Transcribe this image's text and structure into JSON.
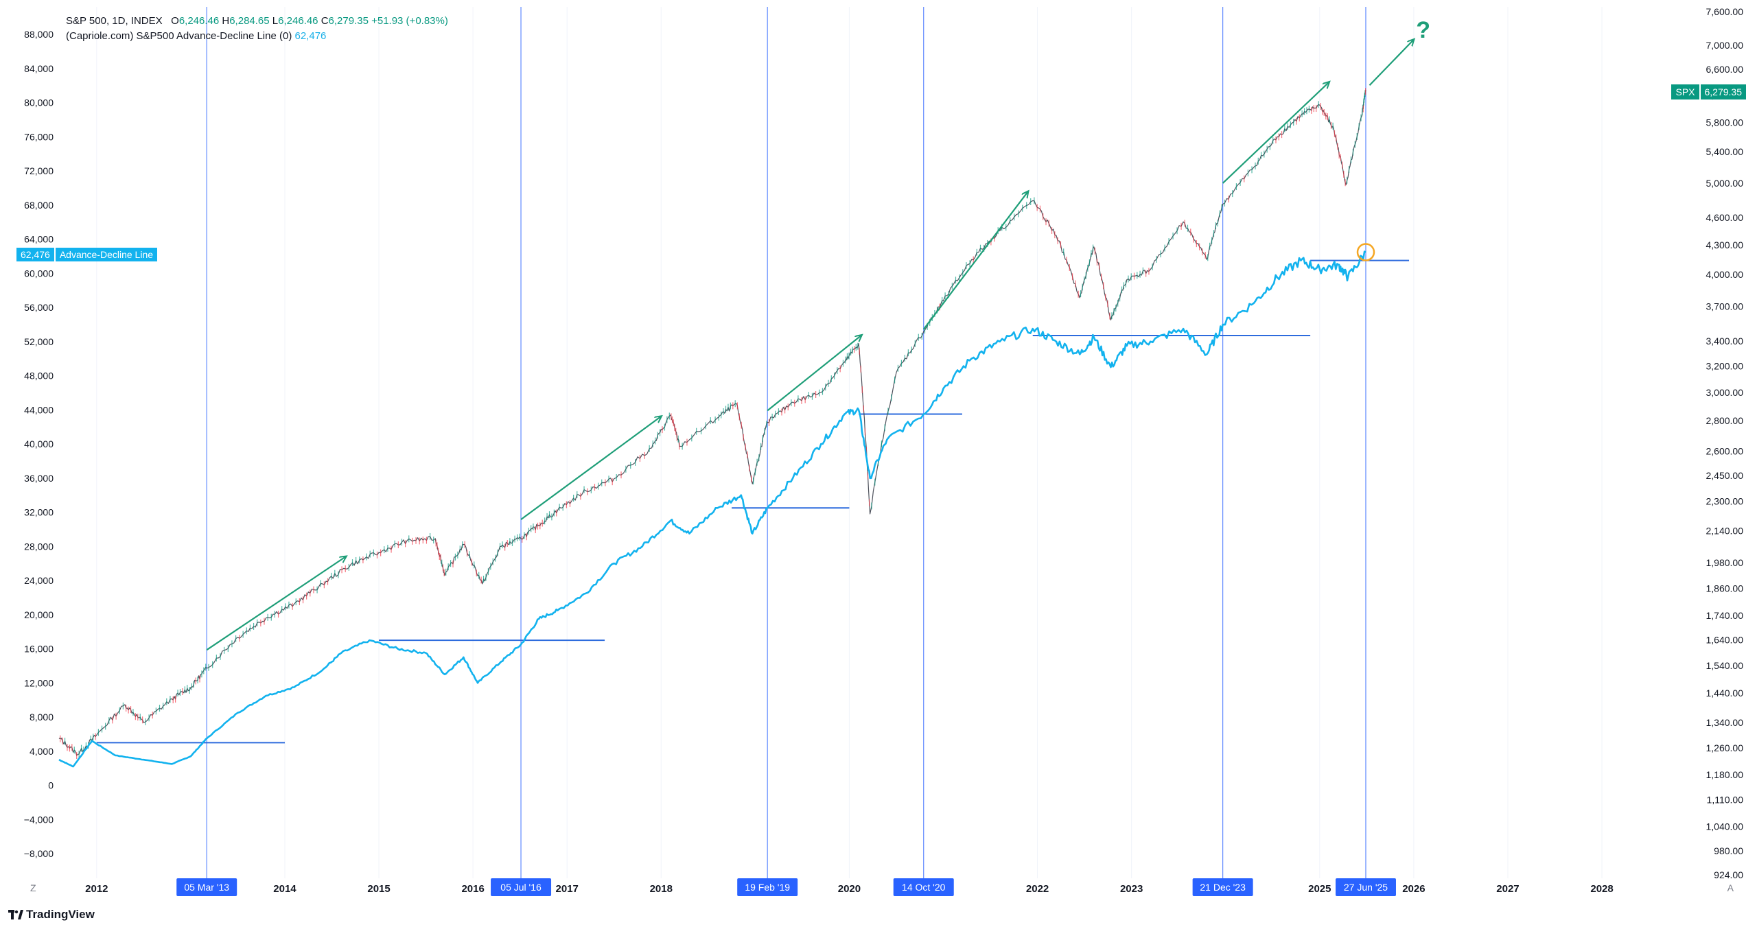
{
  "legend": {
    "line1": {
      "symbol": "S&P 500, 1D, INDEX",
      "o_label": "O",
      "o_value": "6,246.46",
      "h_label": "H",
      "h_value": "6,284.65",
      "l_label": "L",
      "l_value": "6,246.46",
      "c_label": "C",
      "c_value": "6,279.35",
      "change": "+51.93 (+0.83%)"
    },
    "line2": {
      "name": "(Capriole.com) S&P500 Advance-Decline Line (0)",
      "value": "62,476"
    }
  },
  "ad_tag": {
    "value": "62,476",
    "name": "Advance-Decline Line"
  },
  "spx_tag": {
    "symbol": "SPX",
    "value": "6,279.35"
  },
  "brand": "TradingView",
  "buttons": {
    "z": "Z",
    "a": "A"
  },
  "colors": {
    "price_up": "#089981",
    "price_down": "#f23645",
    "adl": "#12b2ee",
    "vline": "#2962ff",
    "arrow": "#1e9e78",
    "support": "#2d6bdd",
    "circle": "#f5a623"
  },
  "chart_data": {
    "type": "line",
    "x_axis": {
      "range": [
        2011.6,
        2028.7
      ],
      "tick_labels": [
        "2012",
        "2014",
        "2015",
        "2016",
        "2017",
        "2018",
        "2020",
        "2022",
        "2023",
        "2025",
        "2026",
        "2027",
        "2028"
      ],
      "tick_positions": [
        2012,
        2014,
        2015,
        2016,
        2017,
        2018,
        2020,
        2022,
        2023,
        2025,
        2026,
        2027,
        2028
      ]
    },
    "left_axis": {
      "name": "Advance-Decline Line",
      "range": [
        -10000,
        92000
      ],
      "tick_labels": [
        "88,000",
        "84,000",
        "80,000",
        "76,000",
        "72,000",
        "68,000",
        "64,000",
        "60,000",
        "56,000",
        "52,000",
        "48,000",
        "44,000",
        "40,000",
        "36,000",
        "32,000",
        "28,000",
        "24,000",
        "20,000",
        "16,000",
        "12,000",
        "8,000",
        "4,000",
        "0",
        "−4,000",
        "−8,000"
      ],
      "tick_values": [
        88000,
        84000,
        80000,
        76000,
        72000,
        68000,
        64000,
        60000,
        56000,
        52000,
        48000,
        44000,
        40000,
        36000,
        32000,
        28000,
        24000,
        20000,
        16000,
        12000,
        8000,
        4000,
        0,
        -4000,
        -8000
      ]
    },
    "right_axis": {
      "name": "SPX",
      "scale": "log",
      "range": [
        924,
        7600
      ],
      "tick_labels": [
        "7,600.00",
        "7,000.00",
        "6,600.00",
        "6,200.00",
        "5,800.00",
        "5,400.00",
        "5,000.00",
        "4,600.00",
        "4,300.00",
        "4,000.00",
        "3,700.00",
        "3,400.00",
        "3,200.00",
        "3,000.00",
        "2,800.00",
        "2,600.00",
        "2,450.00",
        "2,300.00",
        "2,140.00",
        "1,980.00",
        "1,860.00",
        "1,740.00",
        "1,640.00",
        "1,540.00",
        "1,440.00",
        "1,340.00",
        "1,260.00",
        "1,180.00",
        "1,110.00",
        "1,040.00",
        "980.00",
        "924.00"
      ],
      "tick_values": [
        7600,
        7000,
        6600,
        6200,
        5800,
        5400,
        5000,
        4600,
        4300,
        4000,
        3700,
        3400,
        3200,
        3000,
        2800,
        2600,
        2450,
        2300,
        2140,
        1980,
        1860,
        1740,
        1640,
        1540,
        1440,
        1340,
        1260,
        1180,
        1110,
        1040,
        980,
        924
      ]
    },
    "series": [
      {
        "name": "S&P 500",
        "axis": "right",
        "points": [
          [
            2011.6,
            1290
          ],
          [
            2011.8,
            1240
          ],
          [
            2012.0,
            1300
          ],
          [
            2012.3,
            1400
          ],
          [
            2012.5,
            1340
          ],
          [
            2012.8,
            1420
          ],
          [
            2013.0,
            1460
          ],
          [
            2013.17,
            1530
          ],
          [
            2013.5,
            1650
          ],
          [
            2013.8,
            1730
          ],
          [
            2014.1,
            1790
          ],
          [
            2014.4,
            1880
          ],
          [
            2014.7,
            1970
          ],
          [
            2015.0,
            2030
          ],
          [
            2015.3,
            2090
          ],
          [
            2015.6,
            2100
          ],
          [
            2015.7,
            1920
          ],
          [
            2015.9,
            2070
          ],
          [
            2016.1,
            1880
          ],
          [
            2016.3,
            2060
          ],
          [
            2016.51,
            2100
          ],
          [
            2016.7,
            2170
          ],
          [
            2016.9,
            2250
          ],
          [
            2017.2,
            2360
          ],
          [
            2017.5,
            2430
          ],
          [
            2017.9,
            2620
          ],
          [
            2018.1,
            2840
          ],
          [
            2018.2,
            2630
          ],
          [
            2018.6,
            2820
          ],
          [
            2018.8,
            2920
          ],
          [
            2018.97,
            2400
          ],
          [
            2019.13,
            2790
          ],
          [
            2019.4,
            2930
          ],
          [
            2019.7,
            3000
          ],
          [
            2019.95,
            3230
          ],
          [
            2020.1,
            3380
          ],
          [
            2020.22,
            2230
          ],
          [
            2020.5,
            3150
          ],
          [
            2020.79,
            3480
          ],
          [
            2021.0,
            3750
          ],
          [
            2021.3,
            4150
          ],
          [
            2021.6,
            4450
          ],
          [
            2021.95,
            4790
          ],
          [
            2022.2,
            4400
          ],
          [
            2022.45,
            3780
          ],
          [
            2022.6,
            4280
          ],
          [
            2022.78,
            3580
          ],
          [
            2022.95,
            3950
          ],
          [
            2023.2,
            4050
          ],
          [
            2023.55,
            4550
          ],
          [
            2023.8,
            4150
          ],
          [
            2023.97,
            4750
          ],
          [
            2024.3,
            5200
          ],
          [
            2024.55,
            5600
          ],
          [
            2024.8,
            5900
          ],
          [
            2025.0,
            6050
          ],
          [
            2025.15,
            5700
          ],
          [
            2025.28,
            4980
          ],
          [
            2025.45,
            5900
          ],
          [
            2025.49,
            6279
          ]
        ]
      },
      {
        "name": "Advance-Decline Line",
        "axis": "left",
        "points": [
          [
            2011.6,
            3000
          ],
          [
            2011.75,
            2200
          ],
          [
            2011.95,
            5200
          ],
          [
            2012.2,
            3500
          ],
          [
            2012.5,
            3000
          ],
          [
            2012.8,
            2500
          ],
          [
            2013.0,
            3400
          ],
          [
            2013.17,
            5500
          ],
          [
            2013.5,
            8500
          ],
          [
            2013.8,
            10500
          ],
          [
            2014.1,
            11500
          ],
          [
            2014.4,
            13500
          ],
          [
            2014.6,
            15500
          ],
          [
            2014.9,
            17000
          ],
          [
            2015.2,
            16000
          ],
          [
            2015.5,
            15500
          ],
          [
            2015.7,
            13000
          ],
          [
            2015.9,
            15000
          ],
          [
            2016.05,
            12000
          ],
          [
            2016.3,
            14500
          ],
          [
            2016.51,
            16500
          ],
          [
            2016.7,
            19500
          ],
          [
            2016.9,
            20500
          ],
          [
            2017.2,
            22500
          ],
          [
            2017.5,
            26000
          ],
          [
            2017.8,
            28000
          ],
          [
            2018.1,
            31000
          ],
          [
            2018.3,
            29500
          ],
          [
            2018.6,
            32500
          ],
          [
            2018.85,
            34000
          ],
          [
            2018.97,
            29500
          ],
          [
            2019.13,
            32500
          ],
          [
            2019.4,
            36000
          ],
          [
            2019.7,
            40000
          ],
          [
            2019.95,
            43500
          ],
          [
            2020.1,
            44000
          ],
          [
            2020.22,
            36000
          ],
          [
            2020.4,
            40500
          ],
          [
            2020.79,
            43500
          ],
          [
            2021.0,
            46500
          ],
          [
            2021.3,
            50000
          ],
          [
            2021.6,
            52000
          ],
          [
            2021.95,
            53500
          ],
          [
            2022.2,
            52000
          ],
          [
            2022.45,
            50500
          ],
          [
            2022.6,
            52500
          ],
          [
            2022.78,
            49000
          ],
          [
            2022.95,
            51500
          ],
          [
            2023.2,
            52000
          ],
          [
            2023.55,
            53500
          ],
          [
            2023.8,
            50500
          ],
          [
            2023.97,
            54000
          ],
          [
            2024.3,
            56500
          ],
          [
            2024.55,
            59500
          ],
          [
            2024.8,
            61500
          ],
          [
            2025.0,
            60500
          ],
          [
            2025.2,
            61000
          ],
          [
            2025.3,
            59500
          ],
          [
            2025.49,
            62476
          ]
        ]
      }
    ],
    "vertical_markers": [
      {
        "date": 2013.17,
        "label": "05 Mar '13"
      },
      {
        "date": 2016.51,
        "label": "05 Jul '16"
      },
      {
        "date": 2019.13,
        "label": "19 Feb '19"
      },
      {
        "date": 2020.79,
        "label": "14 Oct '20"
      },
      {
        "date": 2023.97,
        "label": "21 Dec '23"
      },
      {
        "date": 2025.49,
        "label": "27 Jun '25"
      }
    ],
    "support_lines": [
      {
        "from": 2012.0,
        "to": 2014.0,
        "value": 5000
      },
      {
        "from": 2015.0,
        "to": 2017.4,
        "value": 17000
      },
      {
        "from": 2018.75,
        "to": 2020.0,
        "value": 32500
      },
      {
        "from": 2020.1,
        "to": 2021.2,
        "value": 43500
      },
      {
        "from": 2021.95,
        "to": 2024.9,
        "value": 52700
      },
      {
        "from": 2024.9,
        "to": 2025.95,
        "value": 61500
      }
    ],
    "trend_arrows": [
      {
        "from": [
          2013.17,
          1600
        ],
        "to": [
          2014.65,
          2010
        ]
      },
      {
        "from": [
          2016.51,
          2200
        ],
        "to": [
          2018.0,
          2830
        ]
      },
      {
        "from": [
          2019.13,
          2870
        ],
        "to": [
          2020.13,
          3450
        ]
      },
      {
        "from": [
          2020.79,
          3500
        ],
        "to": [
          2021.9,
          4900
        ]
      },
      {
        "from": [
          2023.97,
          5000
        ],
        "to": [
          2025.1,
          6400
        ]
      },
      {
        "from": [
          2025.53,
          6350
        ],
        "to": [
          2026.0,
          7100
        ]
      }
    ],
    "annotations": [
      {
        "text": "?",
        "date": 2026.1,
        "value": 7500
      }
    ],
    "highlight_circle": {
      "date": 2025.49,
      "value": 62476
    }
  }
}
